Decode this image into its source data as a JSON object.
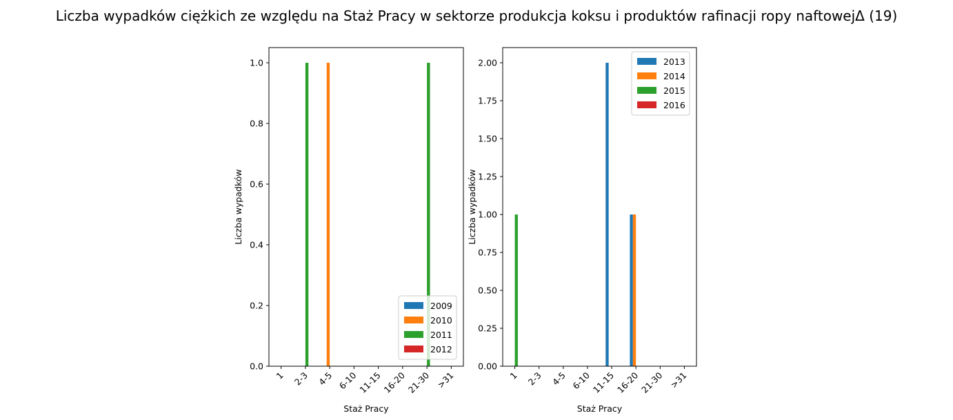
{
  "figure": {
    "suptitle": "Liczba wypadków ciężkich ze względu na Staż Pracy w sektorze produkcja koksu i produktów rafinacji ropy naftowejΔ (19)"
  },
  "chart_data": [
    {
      "type": "bar",
      "categories": [
        "1",
        "2-3",
        "4-5",
        "6-10",
        "11-15",
        "16-20",
        "21-30",
        ">31"
      ],
      "xlabel": "Staż Pracy",
      "ylabel": "Liczba wypadków",
      "ylim": [
        0,
        1.05
      ],
      "yticks": [
        0.0,
        0.2,
        0.4,
        0.6,
        0.8,
        1.0
      ],
      "ytick_labels": [
        "0.0",
        "0.2",
        "0.4",
        "0.6",
        "0.8",
        "1.0"
      ],
      "legend_position": "lower-right",
      "series": [
        {
          "name": "2009",
          "color": "#1f77b4",
          "values": [
            0,
            0,
            0,
            0,
            0,
            0,
            0,
            0
          ]
        },
        {
          "name": "2010",
          "color": "#ff7f0e",
          "values": [
            0,
            0,
            1,
            0,
            0,
            0,
            0,
            0
          ]
        },
        {
          "name": "2011",
          "color": "#2ca02c",
          "values": [
            0,
            1,
            0,
            0,
            0,
            0,
            1,
            0
          ]
        },
        {
          "name": "2012",
          "color": "#d62728",
          "values": [
            0,
            0,
            0,
            0,
            0,
            0,
            0,
            0
          ]
        }
      ]
    },
    {
      "type": "bar",
      "categories": [
        "1",
        "2-3",
        "4-5",
        "6-10",
        "11-15",
        "16-20",
        "21-30",
        ">31"
      ],
      "xlabel": "Staż Pracy",
      "ylabel": "Liczba wypadków",
      "ylim": [
        0,
        2.1
      ],
      "yticks": [
        0.0,
        0.25,
        0.5,
        0.75,
        1.0,
        1.25,
        1.5,
        1.75,
        2.0
      ],
      "ytick_labels": [
        "0.00",
        "0.25",
        "0.50",
        "0.75",
        "1.00",
        "1.25",
        "1.50",
        "1.75",
        "2.00"
      ],
      "legend_position": "upper-right",
      "series": [
        {
          "name": "2013",
          "color": "#1f77b4",
          "values": [
            0,
            0,
            0,
            0,
            2,
            1,
            0,
            0
          ]
        },
        {
          "name": "2014",
          "color": "#ff7f0e",
          "values": [
            0,
            0,
            0,
            0,
            0,
            1,
            0,
            0
          ]
        },
        {
          "name": "2015",
          "color": "#2ca02c",
          "values": [
            1,
            0,
            0,
            0,
            0,
            0,
            0,
            0
          ]
        },
        {
          "name": "2016",
          "color": "#d62728",
          "values": [
            0,
            0,
            0,
            0,
            0,
            0,
            0,
            0
          ]
        }
      ]
    }
  ]
}
